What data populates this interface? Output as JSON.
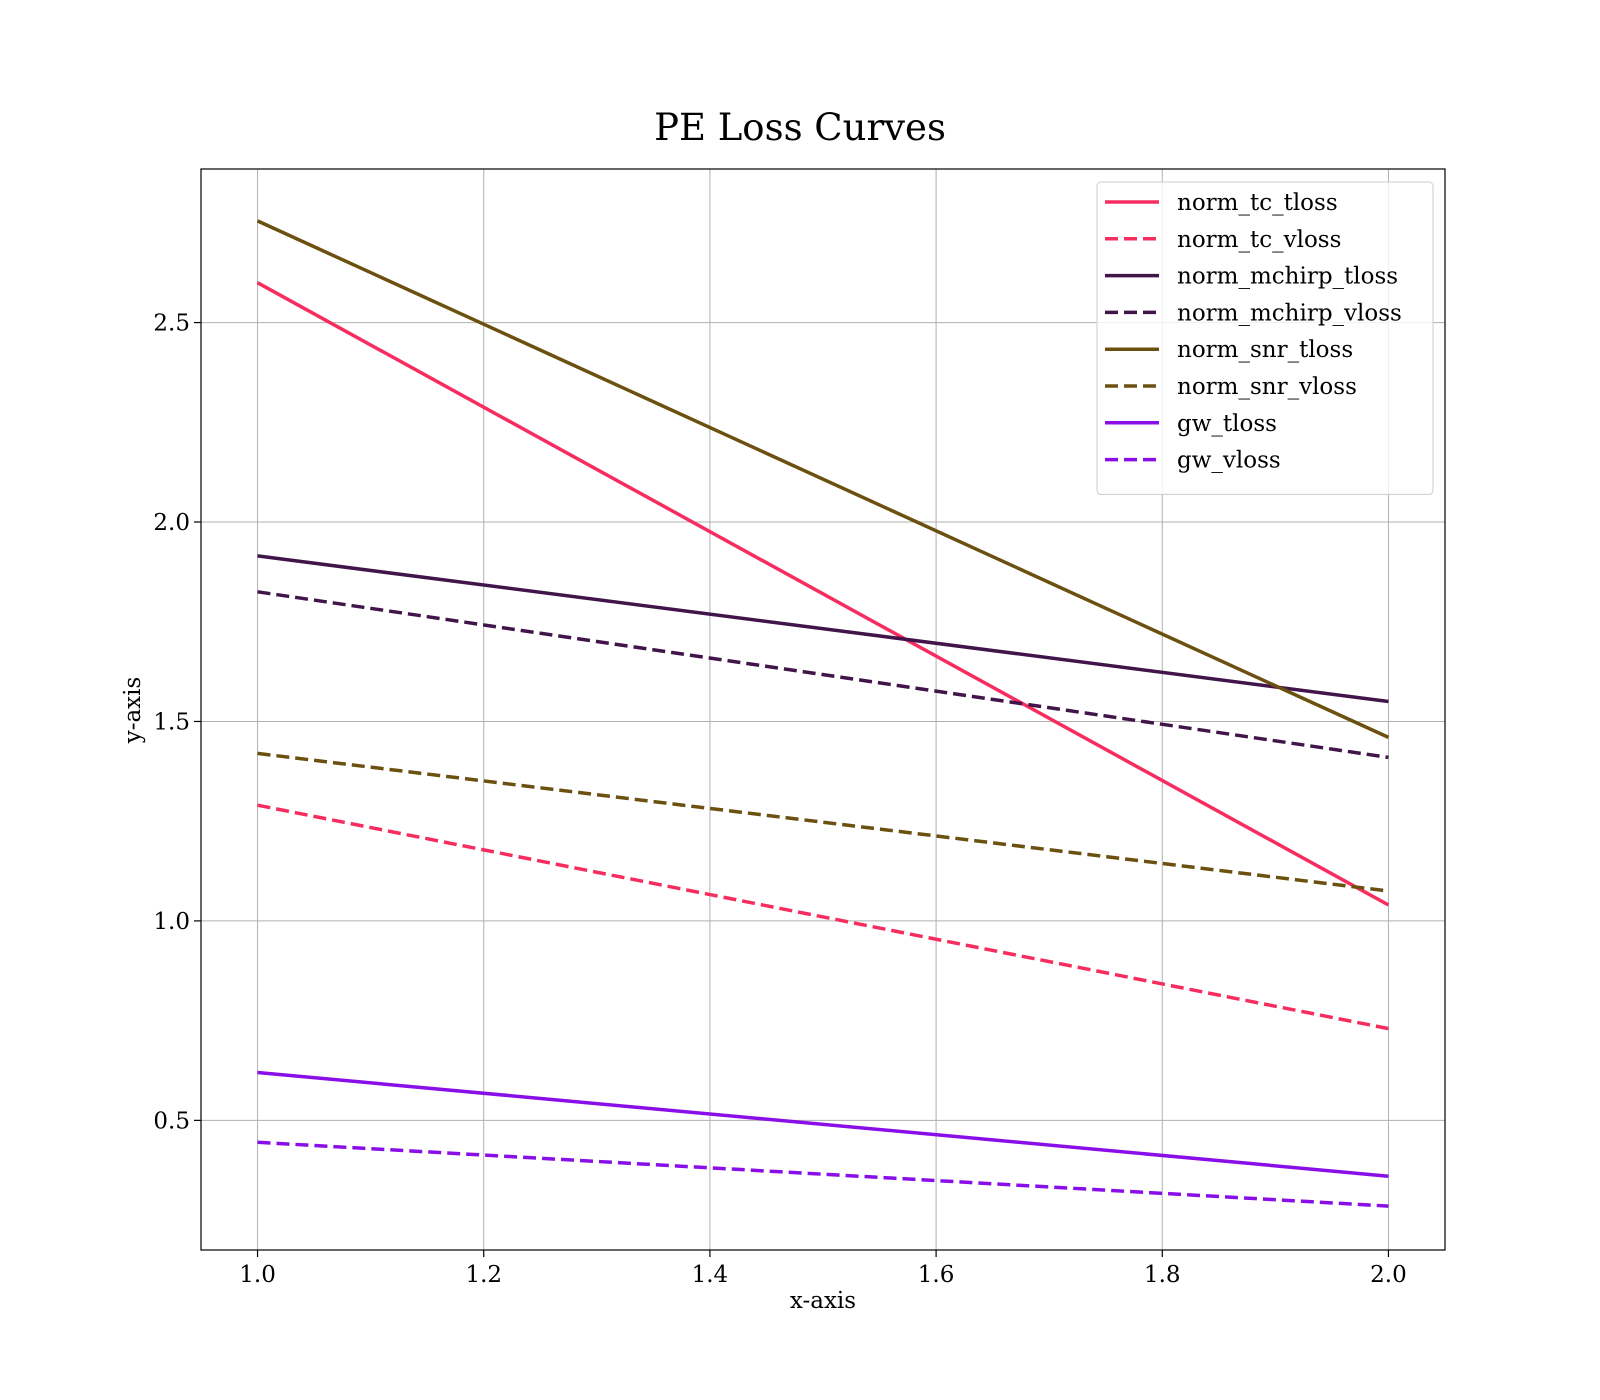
{
  "chart_data": {
    "type": "line",
    "title": "PE Loss Curves",
    "xlabel": "x-axis",
    "ylabel": "y-axis",
    "xlim": [
      0.95,
      2.05
    ],
    "ylim": [
      0.175,
      2.885
    ],
    "xticks": [
      1.0,
      1.2,
      1.4,
      1.6,
      1.8,
      2.0
    ],
    "yticks": [
      0.5,
      1.0,
      1.5,
      2.0,
      2.5
    ],
    "xtick_labels": [
      "1.0",
      "1.2",
      "1.4",
      "1.6",
      "1.8",
      "2.0"
    ],
    "ytick_labels": [
      "0.5",
      "1.0",
      "1.5",
      "2.0",
      "2.5"
    ],
    "grid": true,
    "legend_position": "top-right",
    "x": [
      1.0,
      2.0
    ],
    "series": [
      {
        "name": "norm_tc_tloss",
        "values": [
          2.6,
          1.04
        ],
        "color": "#f72d5f",
        "style": "solid"
      },
      {
        "name": "norm_tc_vloss",
        "values": [
          1.29,
          0.73
        ],
        "color": "#f72d5f",
        "style": "dashed"
      },
      {
        "name": "norm_mchirp_tloss",
        "values": [
          1.915,
          1.55
        ],
        "color": "#41154a",
        "style": "solid"
      },
      {
        "name": "norm_mchirp_vloss",
        "values": [
          1.825,
          1.41
        ],
        "color": "#41154a",
        "style": "dashed"
      },
      {
        "name": "norm_snr_tloss",
        "values": [
          2.755,
          1.46
        ],
        "color": "#6b5010",
        "style": "solid"
      },
      {
        "name": "norm_snr_vloss",
        "values": [
          1.42,
          1.075
        ],
        "color": "#6b5010",
        "style": "dashed"
      },
      {
        "name": "gw_tloss",
        "values": [
          0.62,
          0.36
        ],
        "color": "#8a0ee8",
        "style": "solid"
      },
      {
        "name": "gw_vloss",
        "values": [
          0.445,
          0.285
        ],
        "color": "#8a0ee8",
        "style": "dashed"
      }
    ]
  }
}
